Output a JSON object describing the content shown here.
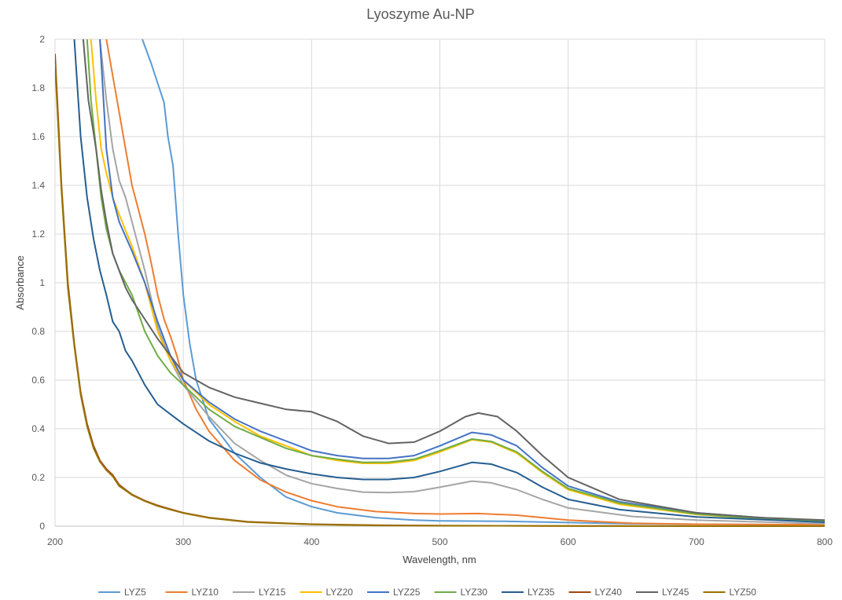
{
  "chart_data": {
    "type": "line",
    "title": "Lyoszyme Au-NP",
    "xlabel": "Wavelength, nm",
    "ylabel": "Absorbance",
    "xlim": [
      200,
      800
    ],
    "ylim": [
      0,
      2
    ],
    "x_ticks": [
      "200",
      "300",
      "400",
      "500",
      "600",
      "700",
      "800"
    ],
    "y_ticks": [
      "0",
      "0.2",
      "0.4",
      "0.6",
      "0.8",
      "1",
      "1.2",
      "1.4",
      "1.6",
      "1.8",
      "2"
    ],
    "grid": true,
    "legend_position": "bottom",
    "series": [
      {
        "name": "LYZ5",
        "color": "#5b9bd5",
        "points": [
          [
            268,
            2.0
          ],
          [
            275,
            1.9
          ],
          [
            280,
            1.82
          ],
          [
            285,
            1.74
          ],
          [
            288,
            1.6
          ],
          [
            292,
            1.48
          ],
          [
            296,
            1.2
          ],
          [
            300,
            0.95
          ],
          [
            305,
            0.75
          ],
          [
            310,
            0.6
          ],
          [
            320,
            0.44
          ],
          [
            340,
            0.3
          ],
          [
            360,
            0.2
          ],
          [
            380,
            0.12
          ],
          [
            400,
            0.08
          ],
          [
            420,
            0.055
          ],
          [
            450,
            0.035
          ],
          [
            480,
            0.025
          ],
          [
            500,
            0.022
          ],
          [
            550,
            0.02
          ],
          [
            600,
            0.015
          ],
          [
            650,
            0.01
          ],
          [
            700,
            0.008
          ],
          [
            800,
            0.005
          ]
        ]
      },
      {
        "name": "LYZ10",
        "color": "#ed7d31",
        "points": [
          [
            240,
            2.0
          ],
          [
            245,
            1.85
          ],
          [
            250,
            1.7
          ],
          [
            255,
            1.55
          ],
          [
            260,
            1.4
          ],
          [
            265,
            1.3
          ],
          [
            270,
            1.2
          ],
          [
            275,
            1.08
          ],
          [
            280,
            0.95
          ],
          [
            285,
            0.85
          ],
          [
            290,
            0.78
          ],
          [
            295,
            0.7
          ],
          [
            300,
            0.6
          ],
          [
            310,
            0.48
          ],
          [
            320,
            0.39
          ],
          [
            340,
            0.27
          ],
          [
            360,
            0.19
          ],
          [
            380,
            0.14
          ],
          [
            400,
            0.105
          ],
          [
            420,
            0.08
          ],
          [
            450,
            0.06
          ],
          [
            480,
            0.052
          ],
          [
            500,
            0.05
          ],
          [
            530,
            0.052
          ],
          [
            560,
            0.045
          ],
          [
            600,
            0.025
          ],
          [
            650,
            0.012
          ],
          [
            700,
            0.008
          ],
          [
            800,
            0.006
          ]
        ]
      },
      {
        "name": "LYZ15",
        "color": "#a5a5a5",
        "points": [
          [
            235,
            2.0
          ],
          [
            240,
            1.75
          ],
          [
            245,
            1.55
          ],
          [
            250,
            1.42
          ],
          [
            255,
            1.35
          ],
          [
            260,
            1.25
          ],
          [
            270,
            1.05
          ],
          [
            280,
            0.82
          ],
          [
            290,
            0.68
          ],
          [
            300,
            0.58
          ],
          [
            320,
            0.45
          ],
          [
            340,
            0.34
          ],
          [
            360,
            0.27
          ],
          [
            380,
            0.21
          ],
          [
            400,
            0.175
          ],
          [
            420,
            0.155
          ],
          [
            440,
            0.14
          ],
          [
            460,
            0.138
          ],
          [
            480,
            0.142
          ],
          [
            500,
            0.16
          ],
          [
            525,
            0.185
          ],
          [
            540,
            0.178
          ],
          [
            560,
            0.15
          ],
          [
            580,
            0.11
          ],
          [
            600,
            0.075
          ],
          [
            650,
            0.04
          ],
          [
            700,
            0.025
          ],
          [
            800,
            0.01
          ]
        ]
      },
      {
        "name": "LYZ20",
        "color": "#ffc000",
        "points": [
          [
            228,
            2.0
          ],
          [
            232,
            1.75
          ],
          [
            236,
            1.55
          ],
          [
            240,
            1.45
          ],
          [
            245,
            1.35
          ],
          [
            250,
            1.28
          ],
          [
            260,
            1.15
          ],
          [
            270,
            1.0
          ],
          [
            280,
            0.8
          ],
          [
            290,
            0.68
          ],
          [
            300,
            0.6
          ],
          [
            320,
            0.5
          ],
          [
            340,
            0.43
          ],
          [
            360,
            0.37
          ],
          [
            380,
            0.33
          ],
          [
            400,
            0.29
          ],
          [
            420,
            0.27
          ],
          [
            440,
            0.258
          ],
          [
            460,
            0.258
          ],
          [
            480,
            0.27
          ],
          [
            500,
            0.305
          ],
          [
            525,
            0.355
          ],
          [
            540,
            0.345
          ],
          [
            560,
            0.3
          ],
          [
            580,
            0.22
          ],
          [
            600,
            0.15
          ],
          [
            640,
            0.09
          ],
          [
            700,
            0.048
          ],
          [
            750,
            0.03
          ],
          [
            800,
            0.02
          ]
        ]
      },
      {
        "name": "LYZ25",
        "color": "#4472c4",
        "points": [
          [
            235,
            2.0
          ],
          [
            240,
            1.55
          ],
          [
            245,
            1.35
          ],
          [
            250,
            1.25
          ],
          [
            260,
            1.13
          ],
          [
            270,
            1.0
          ],
          [
            280,
            0.84
          ],
          [
            290,
            0.7
          ],
          [
            300,
            0.6
          ],
          [
            320,
            0.51
          ],
          [
            340,
            0.44
          ],
          [
            360,
            0.39
          ],
          [
            380,
            0.35
          ],
          [
            400,
            0.31
          ],
          [
            420,
            0.29
          ],
          [
            440,
            0.278
          ],
          [
            460,
            0.278
          ],
          [
            480,
            0.29
          ],
          [
            500,
            0.33
          ],
          [
            525,
            0.385
          ],
          [
            540,
            0.375
          ],
          [
            560,
            0.33
          ],
          [
            580,
            0.24
          ],
          [
            600,
            0.165
          ],
          [
            640,
            0.1
          ],
          [
            700,
            0.055
          ],
          [
            750,
            0.035
          ],
          [
            800,
            0.02
          ]
        ]
      },
      {
        "name": "LYZ30",
        "color": "#70ad47",
        "points": [
          [
            225,
            2.0
          ],
          [
            228,
            1.75
          ],
          [
            232,
            1.55
          ],
          [
            236,
            1.35
          ],
          [
            240,
            1.22
          ],
          [
            245,
            1.12
          ],
          [
            250,
            1.05
          ],
          [
            260,
            0.95
          ],
          [
            270,
            0.8
          ],
          [
            280,
            0.7
          ],
          [
            290,
            0.63
          ],
          [
            300,
            0.58
          ],
          [
            320,
            0.48
          ],
          [
            340,
            0.41
          ],
          [
            360,
            0.365
          ],
          [
            380,
            0.32
          ],
          [
            400,
            0.29
          ],
          [
            420,
            0.275
          ],
          [
            440,
            0.262
          ],
          [
            460,
            0.263
          ],
          [
            480,
            0.275
          ],
          [
            500,
            0.31
          ],
          [
            525,
            0.358
          ],
          [
            540,
            0.348
          ],
          [
            560,
            0.305
          ],
          [
            580,
            0.225
          ],
          [
            600,
            0.155
          ],
          [
            640,
            0.095
          ],
          [
            700,
            0.05
          ],
          [
            750,
            0.03
          ],
          [
            800,
            0.02
          ]
        ]
      },
      {
        "name": "LYZ35",
        "color": "#255e91",
        "points": [
          [
            215,
            2.0
          ],
          [
            220,
            1.6
          ],
          [
            225,
            1.35
          ],
          [
            230,
            1.18
          ],
          [
            235,
            1.05
          ],
          [
            240,
            0.95
          ],
          [
            245,
            0.84
          ],
          [
            250,
            0.8
          ],
          [
            255,
            0.72
          ],
          [
            260,
            0.68
          ],
          [
            270,
            0.58
          ],
          [
            280,
            0.5
          ],
          [
            290,
            0.46
          ],
          [
            300,
            0.42
          ],
          [
            320,
            0.35
          ],
          [
            340,
            0.3
          ],
          [
            360,
            0.26
          ],
          [
            380,
            0.235
          ],
          [
            400,
            0.215
          ],
          [
            420,
            0.2
          ],
          [
            440,
            0.192
          ],
          [
            460,
            0.192
          ],
          [
            480,
            0.2
          ],
          [
            500,
            0.225
          ],
          [
            525,
            0.262
          ],
          [
            540,
            0.255
          ],
          [
            560,
            0.22
          ],
          [
            580,
            0.16
          ],
          [
            600,
            0.11
          ],
          [
            640,
            0.068
          ],
          [
            700,
            0.038
          ],
          [
            800,
            0.016
          ]
        ]
      },
      {
        "name": "LYZ40",
        "color": "#9e480e",
        "points": [
          [
            200,
            1.94
          ],
          [
            205,
            1.4
          ],
          [
            210,
            1.0
          ],
          [
            215,
            0.75
          ],
          [
            220,
            0.55
          ],
          [
            225,
            0.42
          ],
          [
            230,
            0.33
          ],
          [
            235,
            0.27
          ],
          [
            240,
            0.235
          ],
          [
            245,
            0.21
          ],
          [
            250,
            0.17
          ],
          [
            255,
            0.15
          ],
          [
            260,
            0.13
          ],
          [
            270,
            0.105
          ],
          [
            280,
            0.085
          ],
          [
            290,
            0.07
          ],
          [
            300,
            0.055
          ],
          [
            320,
            0.035
          ],
          [
            350,
            0.018
          ],
          [
            400,
            0.008
          ],
          [
            450,
            0.004
          ],
          [
            500,
            0.002
          ],
          [
            600,
            0.001
          ],
          [
            800,
            0.0
          ]
        ]
      },
      {
        "name": "LYZ45",
        "color": "#636363",
        "points": [
          [
            222,
            2.0
          ],
          [
            226,
            1.75
          ],
          [
            232,
            1.55
          ],
          [
            236,
            1.38
          ],
          [
            240,
            1.25
          ],
          [
            245,
            1.12
          ],
          [
            250,
            1.05
          ],
          [
            255,
            0.98
          ],
          [
            260,
            0.93
          ],
          [
            270,
            0.85
          ],
          [
            280,
            0.77
          ],
          [
            290,
            0.7
          ],
          [
            300,
            0.63
          ],
          [
            320,
            0.57
          ],
          [
            340,
            0.53
          ],
          [
            360,
            0.505
          ],
          [
            380,
            0.48
          ],
          [
            400,
            0.47
          ],
          [
            420,
            0.43
          ],
          [
            440,
            0.37
          ],
          [
            460,
            0.34
          ],
          [
            480,
            0.345
          ],
          [
            500,
            0.39
          ],
          [
            520,
            0.45
          ],
          [
            530,
            0.465
          ],
          [
            545,
            0.45
          ],
          [
            560,
            0.39
          ],
          [
            580,
            0.29
          ],
          [
            600,
            0.2
          ],
          [
            640,
            0.11
          ],
          [
            700,
            0.055
          ],
          [
            750,
            0.035
          ],
          [
            800,
            0.025
          ]
        ]
      },
      {
        "name": "LYZ50",
        "color": "#997300",
        "points": [
          [
            200,
            1.9
          ],
          [
            205,
            1.38
          ],
          [
            210,
            0.98
          ],
          [
            215,
            0.74
          ],
          [
            220,
            0.54
          ],
          [
            225,
            0.41
          ],
          [
            230,
            0.32
          ],
          [
            235,
            0.265
          ],
          [
            240,
            0.23
          ],
          [
            245,
            0.205
          ],
          [
            250,
            0.165
          ],
          [
            255,
            0.147
          ],
          [
            260,
            0.128
          ],
          [
            270,
            0.103
          ],
          [
            280,
            0.083
          ],
          [
            290,
            0.068
          ],
          [
            300,
            0.054
          ],
          [
            320,
            0.034
          ],
          [
            350,
            0.017
          ],
          [
            400,
            0.007
          ],
          [
            450,
            0.003
          ],
          [
            500,
            0.002
          ],
          [
            600,
            0.001
          ],
          [
            800,
            0.0
          ]
        ]
      }
    ]
  }
}
